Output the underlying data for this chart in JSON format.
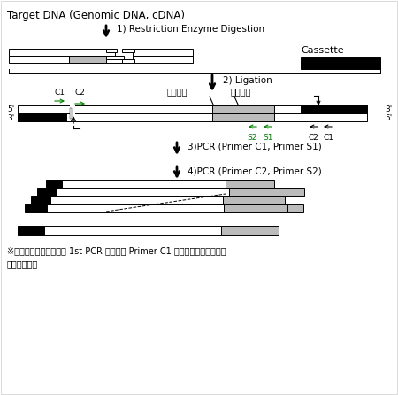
{
  "title": "Target DNA (Genomic DNA, cDNA)",
  "bg_color": "#ffffff",
  "step1_label": "1) Restriction Enzyme Digestion",
  "step2_label": "2) Ligation",
  "step3_label": "3)PCR (Primer C1, Primer S1)",
  "step4_label": "4)PCR (Primer C2, Primer S2)",
  "cassette_label": "Cassette",
  "footer_line1": "：由于此部分有缺口， 1st PCR 反应时从 Primer C1 开始的延伸反应在连接",
  "footer_line2": "部位终止。",
  "black_color": "#000000",
  "gray_color": "#bbbbbb",
  "white_color": "#ffffff",
  "green_color": "#008000",
  "border_color": "#000000"
}
